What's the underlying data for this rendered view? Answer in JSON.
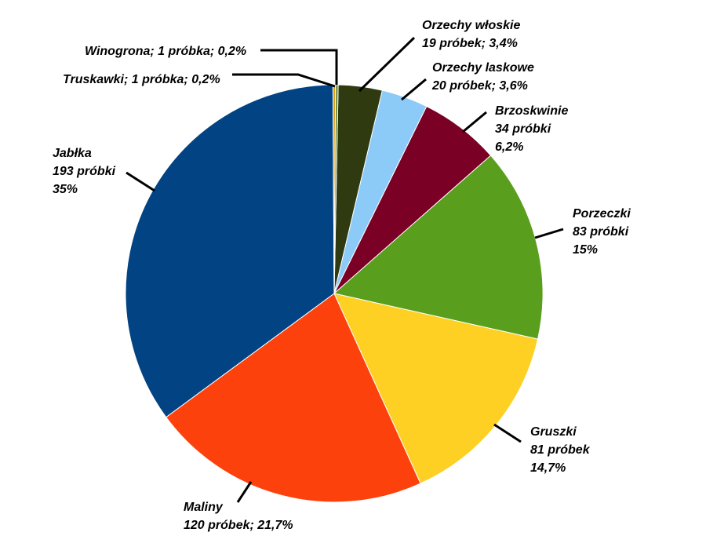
{
  "chart_data": {
    "type": "pie",
    "title": "",
    "slices": [
      {
        "name": "Orzechy włoskie",
        "count": 19,
        "percent": 3.4,
        "color": "#2f3a10",
        "label_lines": [
          "Orzechy włoskie",
          "19 próbek; 3,4%"
        ]
      },
      {
        "name": "Orzechy laskowe",
        "count": 20,
        "percent": 3.6,
        "color": "#8ccaf7",
        "label_lines": [
          "Orzechy laskowe",
          "20 próbek; 3,6%"
        ]
      },
      {
        "name": "Brzoskwinie",
        "count": 34,
        "percent": 6.2,
        "color": "#7a0025",
        "label_lines": [
          "Brzoskwinie",
          "34 próbki",
          "6,2%"
        ]
      },
      {
        "name": "Porzeczki",
        "count": 83,
        "percent": 15,
        "color": "#5a9e1e",
        "label_lines": [
          "Porzeczki",
          "83 próbki",
          "15%"
        ]
      },
      {
        "name": "Gruszki",
        "count": 81,
        "percent": 14.7,
        "color": "#fdd023",
        "label_lines": [
          "Gruszki",
          "81 próbek",
          "14,7%"
        ]
      },
      {
        "name": "Maliny",
        "count": 120,
        "percent": 21.7,
        "color": "#fd410c",
        "label_lines": [
          "Maliny",
          "120 próbek; 21,7%"
        ]
      },
      {
        "name": "Jabłka",
        "count": 193,
        "percent": 35,
        "color": "#024383",
        "label_lines": [
          "Jabłka",
          "193 próbki",
          "35%"
        ]
      },
      {
        "name": "Truskawki",
        "count": 1,
        "percent": 0.2,
        "color": "#d9a31a",
        "label_lines": [
          "Truskawki; 1 próbka; 0,2%"
        ]
      },
      {
        "name": "Winogrona",
        "count": 1,
        "percent": 0.2,
        "color": "#6e8a3a",
        "label_lines": [
          "Winogrona; 1 próbka; 0,2%"
        ]
      }
    ]
  }
}
